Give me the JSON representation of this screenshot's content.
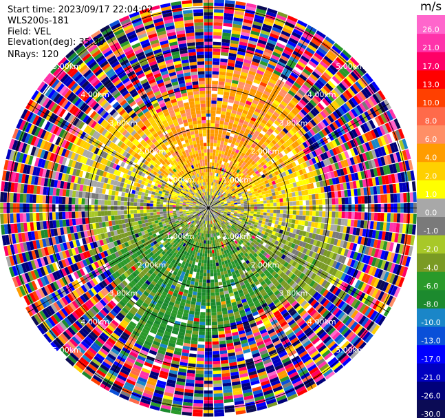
{
  "info": {
    "start_time": "Start time: 2023/09/17 22:04:02",
    "instrument": "WLS200s-181",
    "field": "Field: VEL",
    "elevation": "Elevation(deg): 35.30",
    "nrays": "NRays: 120"
  },
  "chart_data": {
    "type": "ppi",
    "field": "VEL",
    "units": "m/s",
    "n_rays": 120,
    "elevation_deg": 35.3,
    "range_rings_km": [
      1.0,
      2.0,
      3.0,
      4.0,
      5.0
    ],
    "ring_label_text": [
      "1.00km",
      "2.00km",
      "3.00km",
      "4.00km",
      "5.00km"
    ],
    "spoke_angles_deg": [
      0,
      30,
      60,
      90,
      120,
      150,
      180,
      210,
      240,
      270,
      300,
      330
    ],
    "colorbar": {
      "title": "m/s",
      "levels": [
        -30.0,
        -26.0,
        -21.0,
        -17.0,
        -13.0,
        -10.0,
        -8.0,
        -6.0,
        -4.0,
        -2.0,
        -1.0,
        0.0,
        1.0,
        2.0,
        4.0,
        6.0,
        8.0,
        10.0,
        13.0,
        17.0,
        21.0,
        26.0
      ],
      "tick_labels": [
        "-30.0",
        "-26.0",
        "-21.0",
        "-17.0",
        "-13.0",
        "-10.0",
        "-8.0",
        "-6.0",
        "-4.0",
        "-2.0",
        "-1.0",
        "0.0",
        "1.0",
        "2.0",
        "4.0",
        "6.0",
        "8.0",
        "10.0",
        "13.0",
        "17.0",
        "21.0",
        "26.0"
      ],
      "colors": [
        "#0b0b55",
        "#00007a",
        "#0000c0",
        "#0000ff",
        "#0a50d8",
        "#1a86c8",
        "#1c8a2e",
        "#2a9a2a",
        "#7a9a24",
        "#a8c828",
        "#7a7a7a",
        "#a8a8a8",
        "#ffff00",
        "#ffd000",
        "#ff9c00",
        "#ff8f66",
        "#ff6a4a",
        "#ff4000",
        "#ff0000",
        "#ff0066",
        "#ff33aa",
        "#ff66cc"
      ]
    },
    "regions": [
      {
        "sector": "north",
        "velocity_range": [
          2.0,
          8.0
        ]
      },
      {
        "sector": "south",
        "velocity_range": [
          -8.0,
          -2.0
        ]
      },
      {
        "sector": "near-center",
        "velocity_range": [
          -1.0,
          1.0
        ]
      },
      {
        "sector": "outer-noise",
        "velocity_range": [
          -30.0,
          30.0
        ]
      }
    ]
  }
}
